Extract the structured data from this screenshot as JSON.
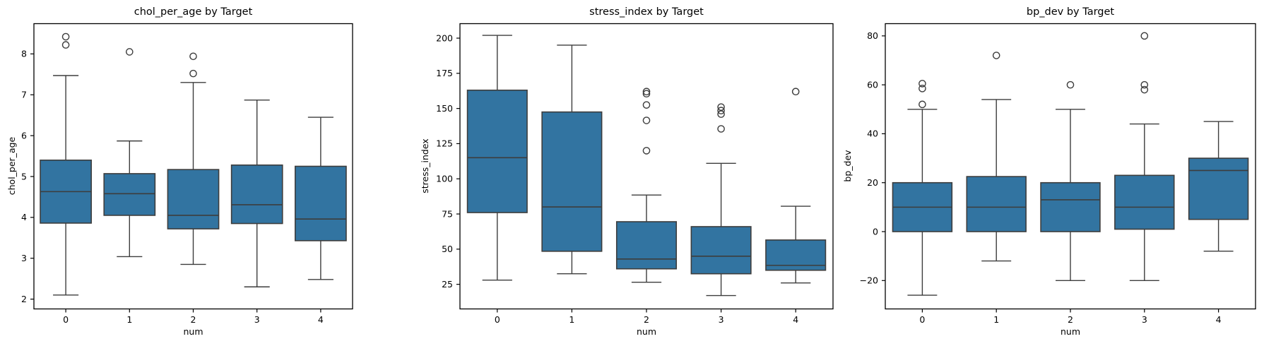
{
  "figure": {
    "background": "#ffffff"
  },
  "style": {
    "box_fill": "#3274a1",
    "box_edge": "#3d3d3d",
    "whisker_color": "#3d3d3d",
    "flier_edge": "#3d3d3d",
    "spine_color": "#000000",
    "text_color": "#000000"
  },
  "chart_data": [
    {
      "type": "box",
      "title": "chol_per_age by Target",
      "xlabel": "num",
      "ylabel": "chol_per_age",
      "categories": [
        "0",
        "1",
        "2",
        "3",
        "4"
      ],
      "yticks": [
        2,
        3,
        4,
        5,
        6,
        7,
        8
      ],
      "ylim": [
        1.76,
        8.74
      ],
      "grid": false,
      "legend": null,
      "boxes": [
        {
          "category": "0",
          "whislo": 2.1,
          "q1": 3.86,
          "med": 4.63,
          "q3": 5.4,
          "whishi": 7.47,
          "fliers": [
            8.42,
            8.22
          ]
        },
        {
          "category": "1",
          "whislo": 3.04,
          "q1": 4.05,
          "med": 4.58,
          "q3": 5.07,
          "whishi": 5.87,
          "fliers": [
            8.05
          ]
        },
        {
          "category": "2",
          "whislo": 2.85,
          "q1": 3.72,
          "med": 4.05,
          "q3": 5.17,
          "whishi": 7.3,
          "fliers": [
            7.94,
            7.52
          ]
        },
        {
          "category": "3",
          "whislo": 2.3,
          "q1": 3.85,
          "med": 4.31,
          "q3": 5.28,
          "whishi": 6.87,
          "fliers": []
        },
        {
          "category": "4",
          "whislo": 2.48,
          "q1": 3.43,
          "med": 3.96,
          "q3": 5.25,
          "whishi": 6.45,
          "fliers": []
        }
      ]
    },
    {
      "type": "box",
      "title": "stress_index by Target",
      "xlabel": "num",
      "ylabel": "stress_index",
      "categories": [
        "0",
        "1",
        "2",
        "3",
        "4"
      ],
      "yticks": [
        25,
        50,
        75,
        100,
        125,
        150,
        175,
        200
      ],
      "ylim": [
        7.5,
        210.3
      ],
      "grid": false,
      "legend": null,
      "boxes": [
        {
          "category": "0",
          "whislo": 28.0,
          "q1": 76.0,
          "med": 115.0,
          "q3": 163.0,
          "whishi": 202.0,
          "fliers": []
        },
        {
          "category": "1",
          "whislo": 32.5,
          "q1": 48.5,
          "med": 80.0,
          "q3": 147.5,
          "whishi": 195.0,
          "fliers": []
        },
        {
          "category": "2",
          "whislo": 26.5,
          "q1": 36.0,
          "med": 43.0,
          "q3": 69.5,
          "whishi": 88.5,
          "fliers": [
            162,
            160.5,
            152.5,
            141.5,
            120
          ]
        },
        {
          "category": "3",
          "whislo": 17.0,
          "q1": 32.5,
          "med": 45.0,
          "q3": 66.0,
          "whishi": 111.0,
          "fliers": [
            151,
            148.5,
            146,
            135.5
          ]
        },
        {
          "category": "4",
          "whislo": 26.0,
          "q1": 35.0,
          "med": 38.5,
          "q3": 56.5,
          "whishi": 80.5,
          "fliers": [
            162
          ]
        }
      ]
    },
    {
      "type": "box",
      "title": "bp_dev by Target",
      "xlabel": "num",
      "ylabel": "bp_dev",
      "categories": [
        "0",
        "1",
        "2",
        "3",
        "4"
      ],
      "yticks": [
        -20,
        0,
        20,
        40,
        60,
        80
      ],
      "ylim": [
        -31.6,
        85.0
      ],
      "grid": false,
      "legend": null,
      "boxes": [
        {
          "category": "0",
          "whislo": -26.0,
          "q1": 0.0,
          "med": 10.0,
          "q3": 20.0,
          "whishi": 50.0,
          "fliers": [
            60.5,
            58.5,
            52
          ]
        },
        {
          "category": "1",
          "whislo": -12.0,
          "q1": 0.0,
          "med": 10.0,
          "q3": 22.5,
          "whishi": 54.0,
          "fliers": [
            72
          ]
        },
        {
          "category": "2",
          "whislo": -20.0,
          "q1": 0.0,
          "med": 13.0,
          "q3": 20.0,
          "whishi": 50.0,
          "fliers": [
            60
          ]
        },
        {
          "category": "3",
          "whislo": -20.0,
          "q1": 1.0,
          "med": 10.0,
          "q3": 23.0,
          "whishi": 44.0,
          "fliers": [
            80,
            60,
            58
          ]
        },
        {
          "category": "4",
          "whislo": -8.0,
          "q1": 5.0,
          "med": 25.0,
          "q3": 30.0,
          "whishi": 45.0,
          "fliers": []
        }
      ]
    }
  ]
}
